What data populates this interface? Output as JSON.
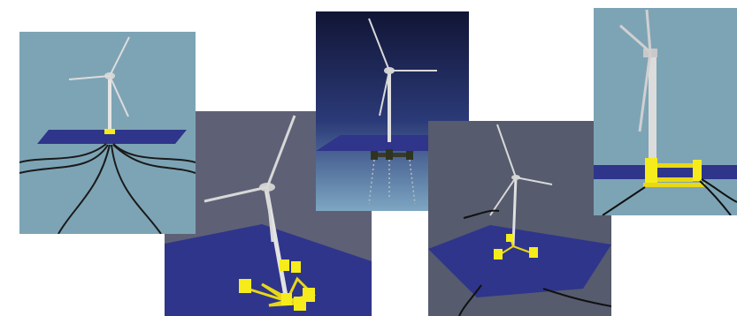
{
  "collage": {
    "panel_count": 5,
    "panels": [
      {
        "subject": "floating-wind-turbine",
        "platform": "barge",
        "background": "#7da4b5",
        "mooring": "catenary-lines"
      },
      {
        "subject": "floating-wind-turbine",
        "platform": "multi-column-semisubmersible",
        "background": "#5e6176",
        "accent": "#f6ec1c"
      },
      {
        "subject": "floating-wind-turbine",
        "platform": "tension-leg",
        "background": "#161e46",
        "mooring": "dashed-tendons"
      },
      {
        "subject": "floating-wind-turbine",
        "platform": "three-column-semisubmersible",
        "background": "#565b6e",
        "accent": "#f6ec1c"
      },
      {
        "subject": "floating-wind-turbine",
        "platform": "semisubmersible-close-up",
        "background": "#7da4b5",
        "accent": "#f6ec1c"
      }
    ]
  },
  "colors": {
    "sea_surface": "#2f358a",
    "tower": "#d9d9d9",
    "platform_yellow": "#f6ec1c",
    "mooring_line": "#1a1a1a"
  }
}
